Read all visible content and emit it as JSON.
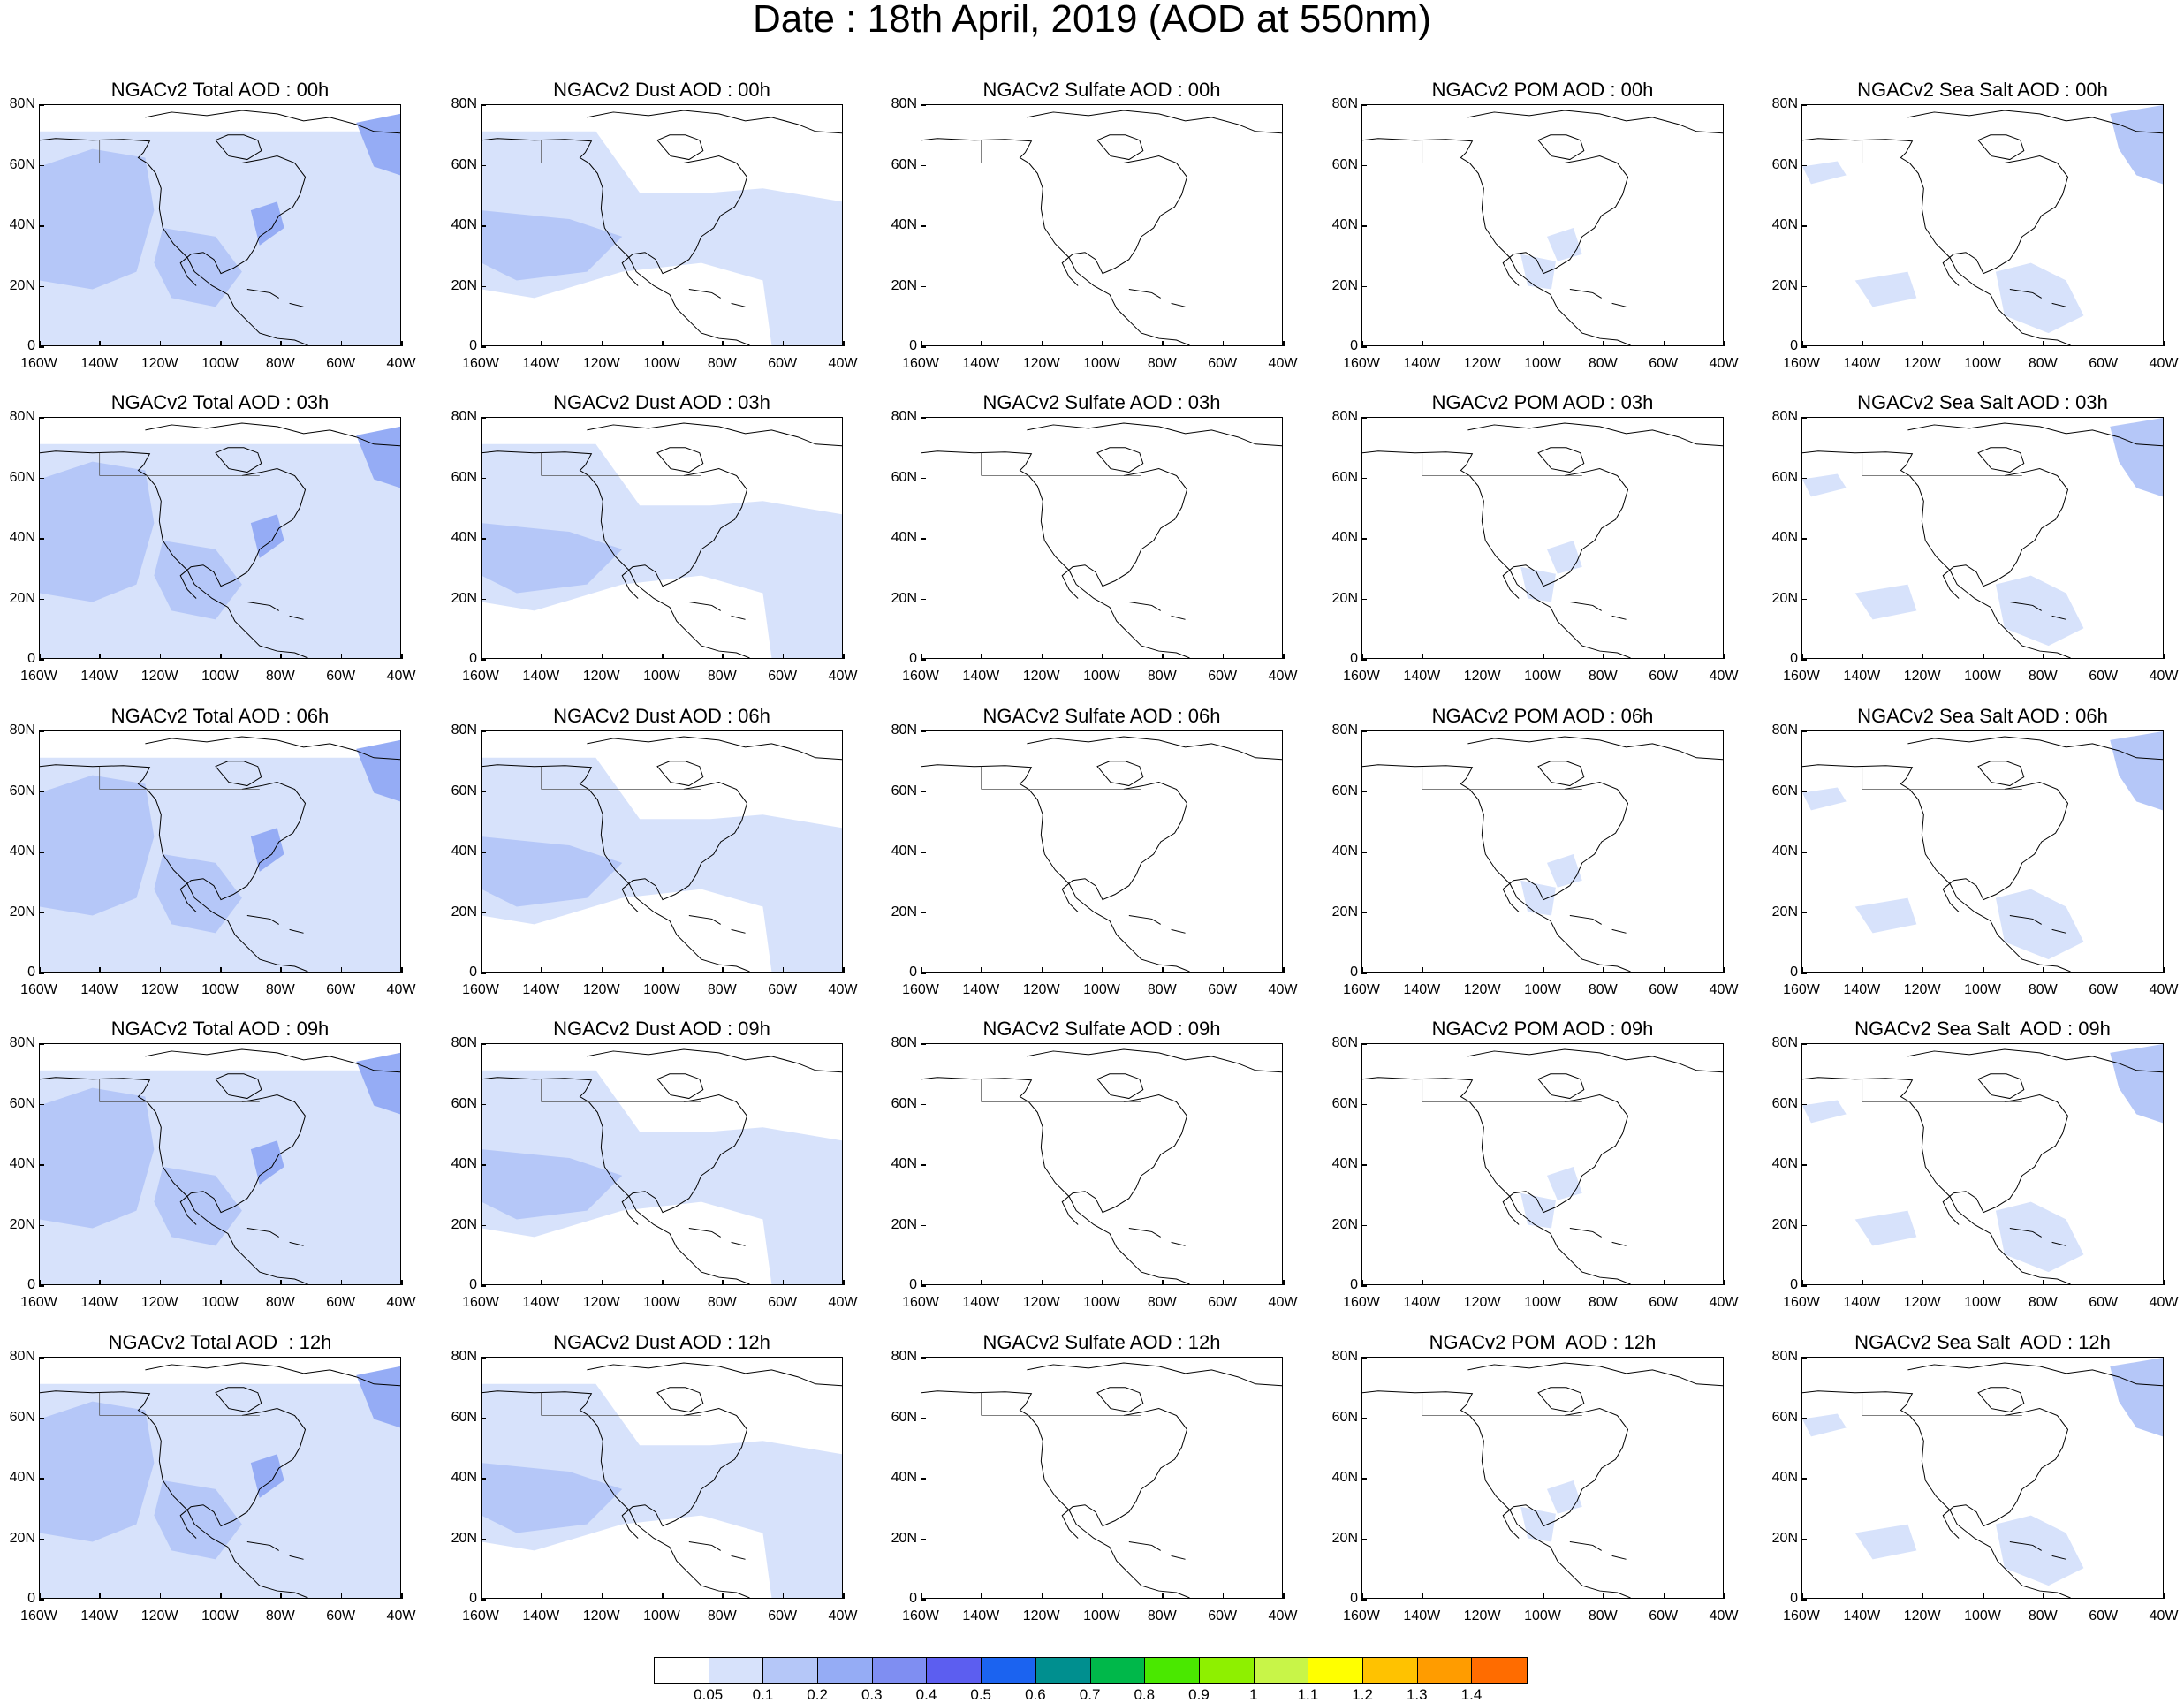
{
  "title": "Date : 18th April, 2019 (AOD at 550nm)",
  "axes": {
    "lat_labels": [
      "80N",
      "60N",
      "40N",
      "20N",
      "0"
    ],
    "lon_labels": [
      "160W",
      "140W",
      "120W",
      "100W",
      "80W",
      "60W",
      "40W"
    ],
    "lat_range": [
      0,
      80
    ],
    "lon_range": [
      -160,
      -40
    ]
  },
  "panels": [
    [
      "NGACv2 Total AOD : 00h",
      "NGACv2 Dust AOD : 00h",
      "NGACv2 Sulfate AOD : 00h",
      "NGACv2 POM AOD : 00h",
      "NGACv2 Sea Salt AOD : 00h"
    ],
    [
      "NGACv2 Total AOD : 03h",
      "NGACv2 Dust AOD : 03h",
      "NGACv2 Sulfate AOD : 03h",
      "NGACv2 POM AOD : 03h",
      "NGACv2 Sea Salt AOD : 03h"
    ],
    [
      "NGACv2 Total AOD : 06h",
      "NGACv2 Dust AOD : 06h",
      "NGACv2 Sulfate AOD : 06h",
      "NGACv2 POM AOD : 06h",
      "NGACv2 Sea Salt AOD : 06h"
    ],
    [
      "NGACv2 Total AOD : 09h",
      "NGACv2 Dust AOD : 09h",
      "NGACv2 Sulfate AOD : 09h",
      "NGACv2 POM AOD : 09h",
      "NGACv2 Sea Salt  AOD : 09h"
    ],
    [
      "NGACv2 Total AOD  : 12h",
      "NGACv2 Dust AOD : 12h",
      "NGACv2 Sulfate AOD : 12h",
      "NGACv2 POM  AOD : 12h",
      "NGACv2 Sea Salt  AOD : 12h"
    ]
  ],
  "colorbar": {
    "labels": [
      "0.05",
      "0.1",
      "0.2",
      "0.3",
      "0.4",
      "0.5",
      "0.6",
      "0.7",
      "0.8",
      "0.9",
      "1",
      "1.1",
      "1.2",
      "1.3",
      "1.4"
    ],
    "colors": [
      "#ffffff",
      "#d7e2fb",
      "#b5c7f8",
      "#95acf5",
      "#7f8ef2",
      "#5c5ef0",
      "#1b63f0",
      "#008f8f",
      "#00b84a",
      "#4ae800",
      "#8ef000",
      "#c8f548",
      "#ffff00",
      "#ffc200",
      "#ff9c00",
      "#ff6c00",
      "#ff2200"
    ]
  },
  "aod_colors": {
    "low": "#d7e2fb",
    "mid": "#b5c7f8",
    "high": "#95acf5"
  }
}
